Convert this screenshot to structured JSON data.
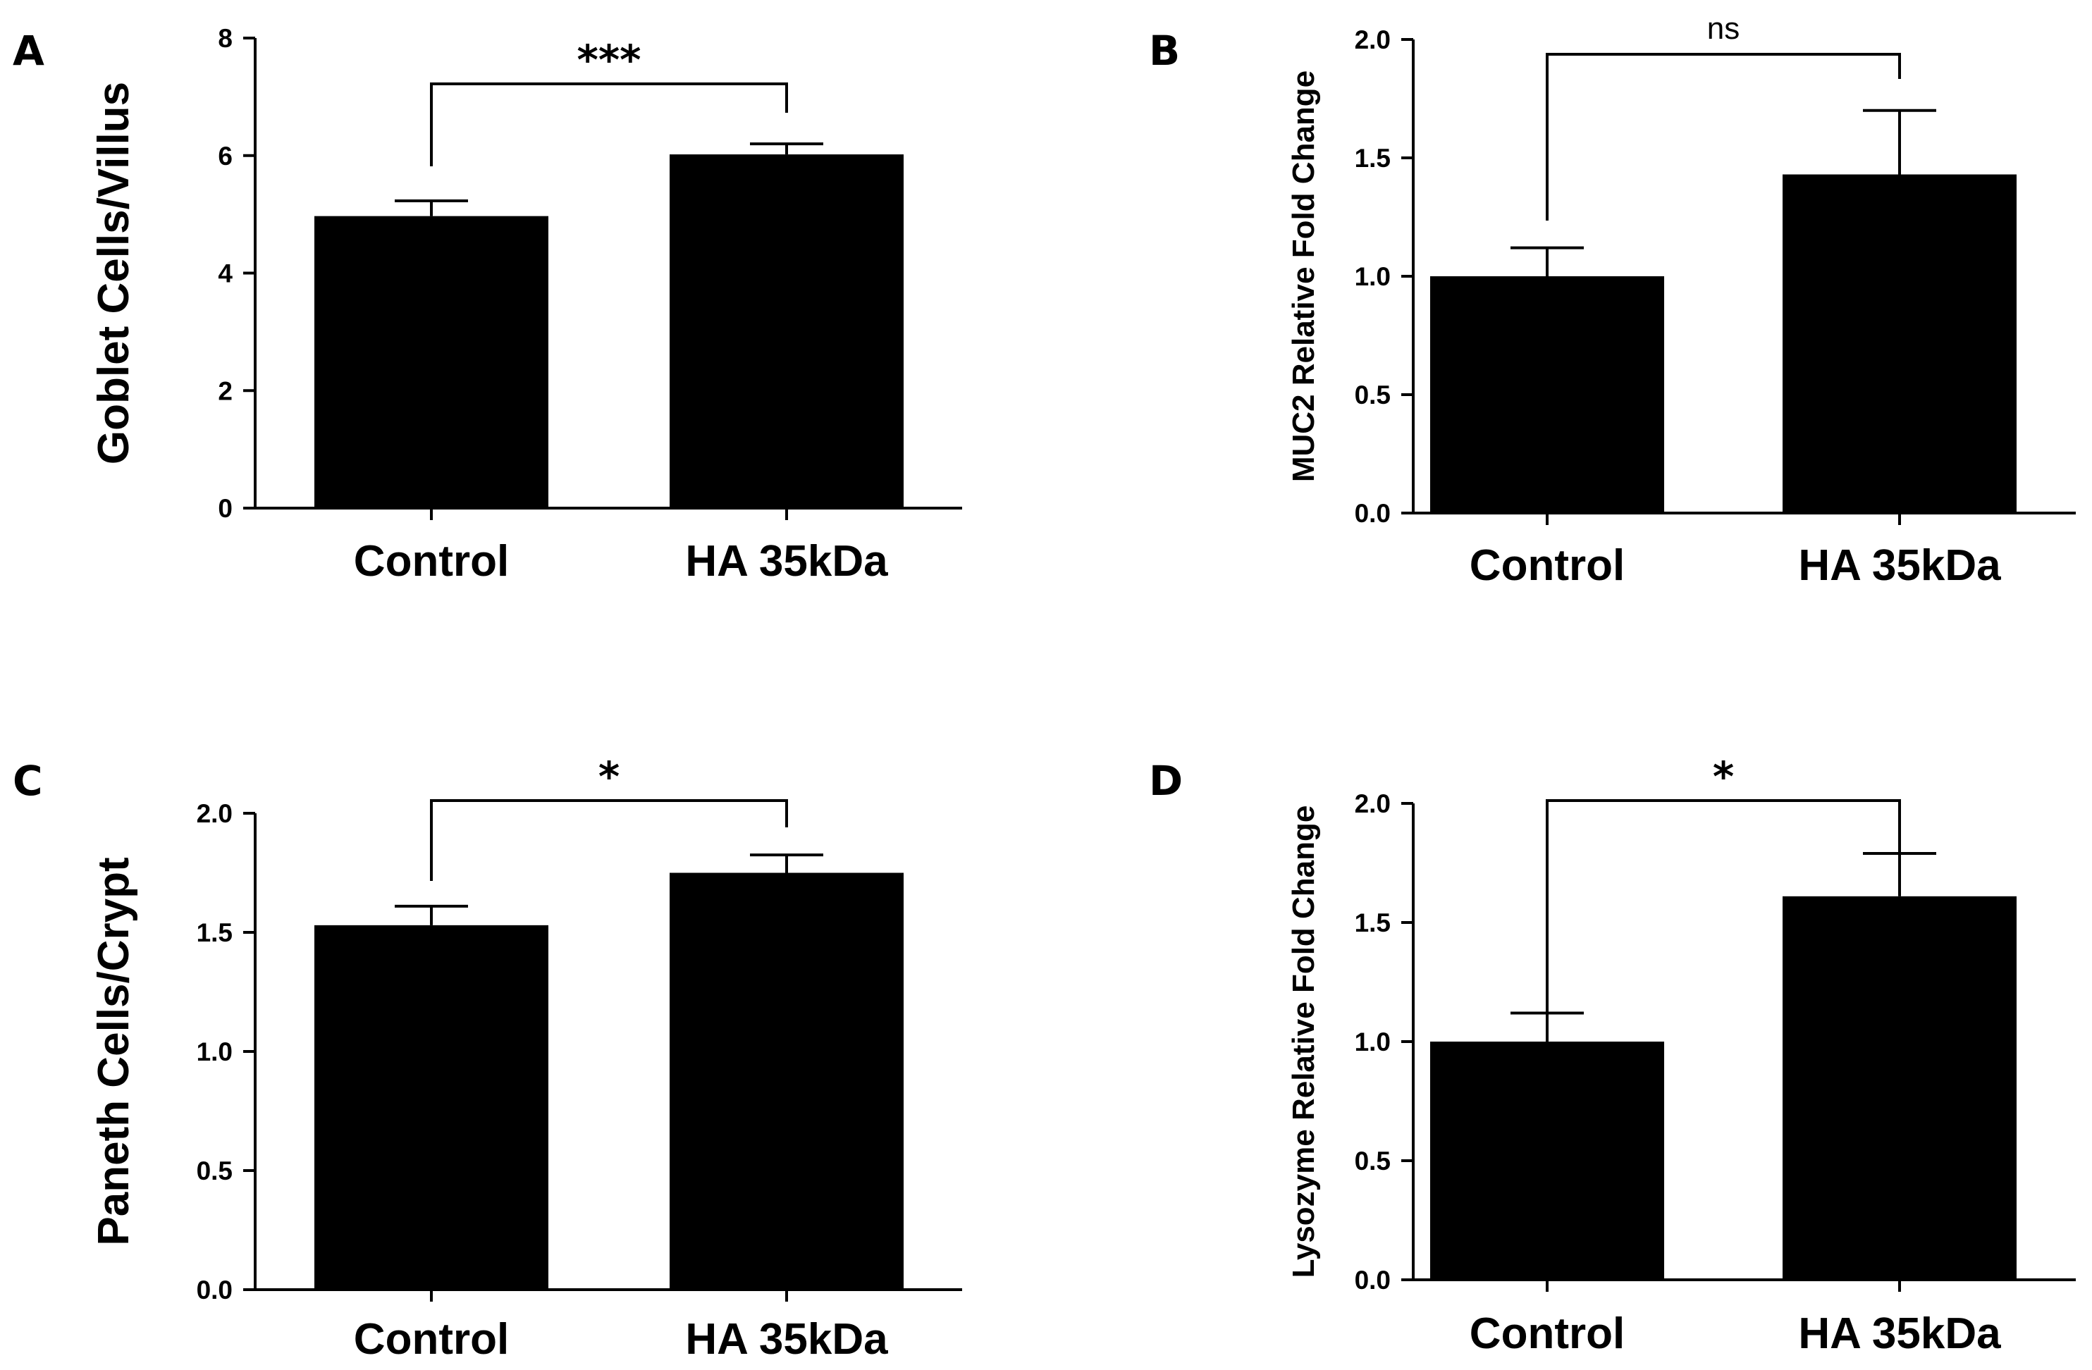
{
  "figure": {
    "bar_color": "#000000",
    "background": "#ffffff"
  },
  "chart_data": [
    {
      "type": "bar",
      "panel_label": "A",
      "title": "",
      "xlabel": "",
      "ylabel": "Goblet Cells/Villus",
      "categories": [
        "Control",
        "HA 35kDa"
      ],
      "values": [
        4.97,
        6.02
      ],
      "errors": [
        0.26,
        0.18
      ],
      "ylim": [
        0,
        8
      ],
      "yticks": [
        0,
        2,
        4,
        6,
        8
      ],
      "ytick_labels": [
        "0",
        "2",
        "4",
        "6",
        "8"
      ],
      "significance": "***",
      "grid": false
    },
    {
      "type": "bar",
      "panel_label": "B",
      "title": "",
      "xlabel": "",
      "ylabel": "MUC2 Relative Fold Change",
      "categories": [
        "Control",
        "HA 35kDa"
      ],
      "values": [
        1.0,
        1.43
      ],
      "errors": [
        0.12,
        0.27
      ],
      "ylim": [
        0,
        2.0
      ],
      "yticks": [
        0,
        0.5,
        1.0,
        1.5,
        2.0
      ],
      "ytick_labels": [
        "0.0",
        "0.5",
        "1.0",
        "1.5",
        "2.0"
      ],
      "significance": "ns",
      "grid": false
    },
    {
      "type": "bar",
      "panel_label": "C",
      "title": "",
      "xlabel": "",
      "ylabel": "Paneth Cells/Crypt",
      "categories": [
        "Control",
        "HA 35kDa"
      ],
      "values": [
        1.53,
        1.75
      ],
      "errors": [
        0.08,
        0.075
      ],
      "ylim": [
        0,
        2.0
      ],
      "yticks": [
        0,
        0.5,
        1.0,
        1.5,
        2.0
      ],
      "ytick_labels": [
        "0.0",
        "0.5",
        "1.0",
        "1.5",
        "2.0"
      ],
      "significance": "*",
      "grid": false
    },
    {
      "type": "bar",
      "panel_label": "D",
      "title": "",
      "xlabel": "",
      "ylabel": "Lysozyme Relative Fold Change",
      "categories": [
        "Control",
        "HA 35kDa"
      ],
      "values": [
        1.0,
        1.61
      ],
      "errors": [
        0.12,
        0.18
      ],
      "ylim": [
        0,
        2.0
      ],
      "yticks": [
        0,
        0.5,
        1.0,
        1.5,
        2.0
      ],
      "ytick_labels": [
        "0.0",
        "0.5",
        "1.0",
        "1.5",
        "2.0"
      ],
      "significance": "*",
      "grid": false
    }
  ]
}
